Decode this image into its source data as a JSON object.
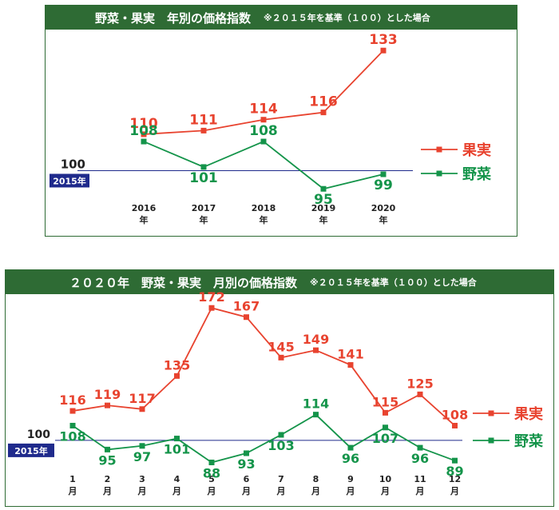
{
  "colors": {
    "header_bg": "#2e6b34",
    "fruit": "#e8432f",
    "veg": "#14944a",
    "baseline": "#1f2a8c",
    "base_label_bg": "#1f2a8c"
  },
  "chart_data": [
    {
      "type": "line",
      "title": "野菜・果実　年別の価格指数",
      "note": "※２０１５年を基準（１００）とした場合",
      "categories": [
        "2016",
        "2017",
        "2018",
        "2019",
        "2020"
      ],
      "unit_suffix": "年",
      "ylim": [
        90,
        137
      ],
      "baseline": {
        "value": 100,
        "value_label": "100",
        "label": "2015年"
      },
      "series": [
        {
          "name": "果実",
          "values": [
            110,
            111,
            114,
            116,
            133
          ]
        },
        {
          "name": "野菜",
          "values": [
            108,
            101,
            108,
            95,
            99
          ]
        }
      ]
    },
    {
      "type": "line",
      "title": "２０２０年　野菜・果実　月別の価格指数",
      "note": "※２０１５年を基準（１００）とした場合",
      "categories": [
        "1",
        "2",
        "3",
        "4",
        "5",
        "6",
        "7",
        "8",
        "9",
        "10",
        "11",
        "12"
      ],
      "unit_suffix": "月",
      "ylim": [
        83,
        176
      ],
      "baseline": {
        "value": 100,
        "value_label": "100",
        "label": "2015年"
      },
      "series": [
        {
          "name": "果実",
          "values": [
            116,
            119,
            117,
            135,
            172,
            167,
            145,
            149,
            141,
            115,
            125,
            108
          ]
        },
        {
          "name": "野菜",
          "values": [
            108,
            95,
            97,
            101,
            88,
            93,
            103,
            114,
            96,
            107,
            96,
            89
          ]
        }
      ]
    }
  ]
}
